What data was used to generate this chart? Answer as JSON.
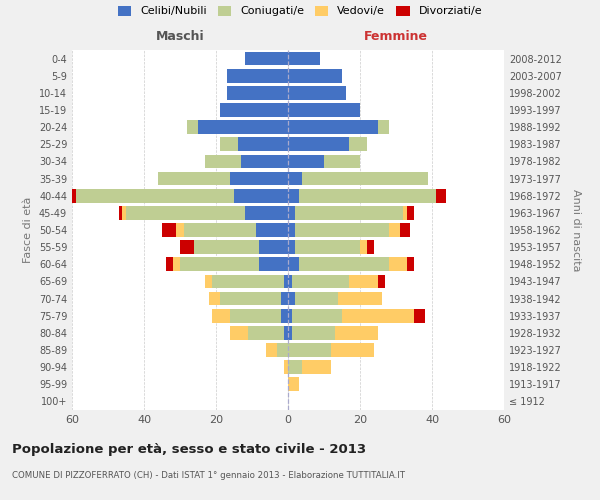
{
  "age_groups": [
    "100+",
    "95-99",
    "90-94",
    "85-89",
    "80-84",
    "75-79",
    "70-74",
    "65-69",
    "60-64",
    "55-59",
    "50-54",
    "45-49",
    "40-44",
    "35-39",
    "30-34",
    "25-29",
    "20-24",
    "15-19",
    "10-14",
    "5-9",
    "0-4"
  ],
  "birth_years": [
    "≤ 1912",
    "1913-1917",
    "1918-1922",
    "1923-1927",
    "1928-1932",
    "1933-1937",
    "1938-1942",
    "1943-1947",
    "1948-1952",
    "1953-1957",
    "1958-1962",
    "1963-1967",
    "1968-1972",
    "1973-1977",
    "1978-1982",
    "1983-1987",
    "1988-1992",
    "1993-1997",
    "1998-2002",
    "2003-2007",
    "2008-2012"
  ],
  "maschi": {
    "celibi": [
      0,
      0,
      0,
      0,
      1,
      2,
      2,
      1,
      8,
      8,
      9,
      12,
      15,
      16,
      13,
      14,
      25,
      19,
      17,
      17,
      12
    ],
    "coniugati": [
      0,
      0,
      0,
      3,
      10,
      14,
      17,
      20,
      22,
      18,
      20,
      33,
      44,
      20,
      10,
      5,
      3,
      0,
      0,
      0,
      0
    ],
    "vedovi": [
      0,
      0,
      1,
      3,
      5,
      5,
      3,
      2,
      2,
      0,
      2,
      1,
      0,
      0,
      0,
      0,
      0,
      0,
      0,
      0,
      0
    ],
    "divorziati": [
      0,
      0,
      0,
      0,
      0,
      0,
      0,
      0,
      2,
      4,
      4,
      1,
      2,
      0,
      0,
      0,
      0,
      0,
      0,
      0,
      0
    ]
  },
  "femmine": {
    "nubili": [
      0,
      0,
      0,
      0,
      1,
      1,
      2,
      1,
      3,
      2,
      2,
      2,
      3,
      4,
      10,
      17,
      25,
      20,
      16,
      15,
      9
    ],
    "coniugate": [
      0,
      0,
      4,
      12,
      12,
      14,
      12,
      16,
      25,
      18,
      26,
      30,
      38,
      35,
      10,
      5,
      3,
      0,
      0,
      0,
      0
    ],
    "vedove": [
      0,
      3,
      8,
      12,
      12,
      20,
      12,
      8,
      5,
      2,
      3,
      1,
      0,
      0,
      0,
      0,
      0,
      0,
      0,
      0,
      0
    ],
    "divorziate": [
      0,
      0,
      0,
      0,
      0,
      3,
      0,
      2,
      2,
      2,
      3,
      2,
      3,
      0,
      0,
      0,
      0,
      0,
      0,
      0,
      0
    ]
  },
  "colors": {
    "celibi": "#4472C4",
    "coniugati": "#BFCE93",
    "vedovi": "#FFCC66",
    "divorziati": "#CC0000"
  },
  "xlim": 60,
  "title": "Popolazione per età, sesso e stato civile - 2013",
  "subtitle": "COMUNE DI PIZZOFERRATO (CH) - Dati ISTAT 1° gennaio 2013 - Elaborazione TUTTITALIA.IT",
  "ylabel_left": "Fasce di età",
  "ylabel_right": "Anni di nascita",
  "xlabel_left": "Maschi",
  "xlabel_right": "Femmine",
  "bg_color": "#f0f0f0",
  "plot_bg_color": "#ffffff"
}
